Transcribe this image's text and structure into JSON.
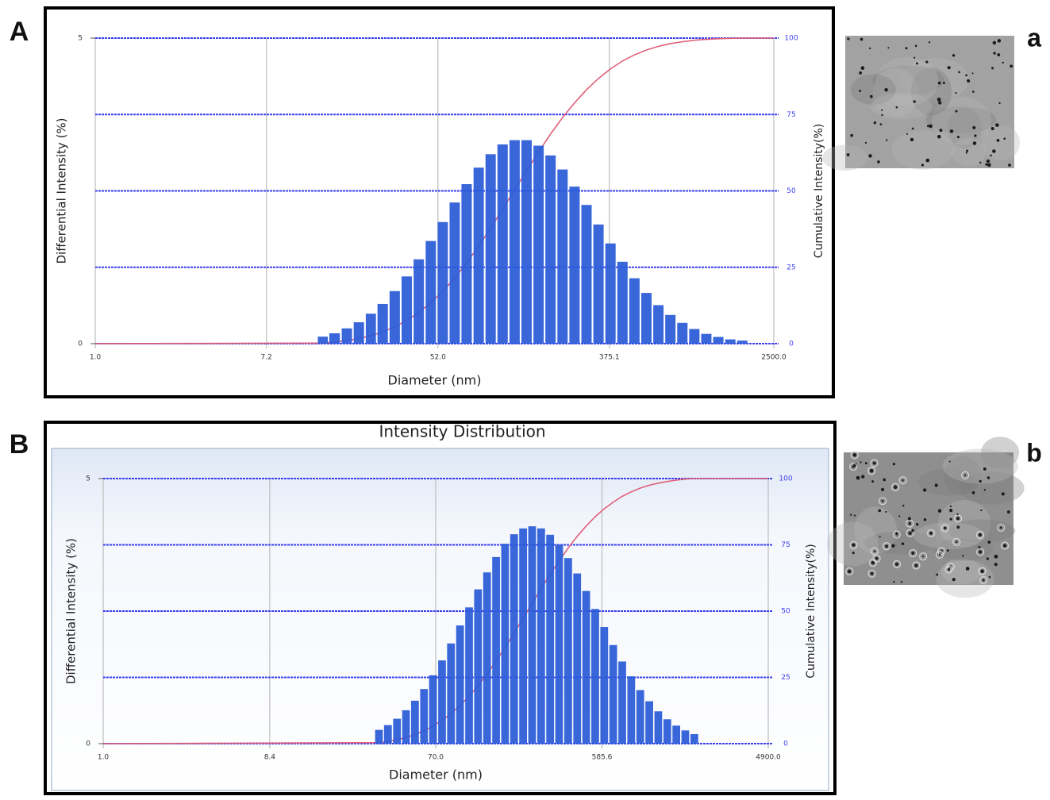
{
  "chart_data": [
    {
      "type": "bar",
      "panel_label": "A",
      "image_label": "a",
      "y_label": "Differential Intensity (%)",
      "y2_label": "Cumulative Intensity(%)",
      "x_label": "Diameter (nm)",
      "xscale": "log",
      "xlim": [
        1,
        2500
      ],
      "xticks": [
        {
          "value": 1,
          "label": "1.0"
        },
        7.2,
        {
          "value": 52,
          "label": "52.0"
        },
        375.1,
        {
          "value": 2500,
          "label": "2500.0"
        }
      ],
      "ylim": [
        0,
        5
      ],
      "yticks": [
        0,
        5
      ],
      "y2lim": [
        0,
        100
      ],
      "y2ticks": [
        0,
        25,
        50,
        75,
        100
      ],
      "grid": true,
      "series": [
        {
          "type": "bar",
          "color": "#2a5bd7",
          "x": [
            13.8,
            15.8,
            18.2,
            20.9,
            24.0,
            27.5,
            31.6,
            36.3,
            41.7,
            47.9,
            55.0,
            63.1,
            72.4,
            83.2,
            95.5,
            109.6,
            125.9,
            144.5,
            166.0,
            190.5,
            218.8,
            251.2,
            288.4,
            331.1,
            380.2,
            436.5,
            501.2,
            575.4,
            660.7,
            758.6,
            871.0,
            1000,
            1148,
            1318,
            1514,
            1738
          ],
          "values": [
            0.115,
            0.17,
            0.25,
            0.35,
            0.49,
            0.65,
            0.86,
            1.1,
            1.38,
            1.68,
            1.99,
            2.31,
            2.61,
            2.88,
            3.1,
            3.26,
            3.33,
            3.33,
            3.24,
            3.08,
            2.85,
            2.57,
            2.27,
            1.95,
            1.64,
            1.34,
            1.07,
            0.83,
            0.63,
            0.47,
            0.34,
            0.24,
            0.16,
            0.11,
            0.07,
            0.05
          ]
        },
        {
          "type": "line",
          "axis": "y2",
          "color": "#e0607a",
          "x": [
            1,
            13.8,
            15.8,
            18.2,
            20.9,
            24.0,
            27.5,
            31.6,
            36.3,
            41.7,
            47.9,
            55.0,
            63.1,
            72.4,
            83.2,
            95.5,
            109.6,
            125.9,
            144.5,
            166.0,
            190.5,
            218.8,
            251.2,
            288.4,
            331.1,
            380.2,
            436.5,
            501.2,
            575.4,
            660.7,
            758.6,
            871.0,
            1000,
            1148,
            1318,
            1514,
            1738,
            2500
          ],
          "values": [
            0,
            0.2,
            0.5,
            1.0,
            1.7,
            2.6,
            3.8,
            5.5,
            7.6,
            10.2,
            13.4,
            17.1,
            21.5,
            26.4,
            31.9,
            37.8,
            44.0,
            50.3,
            56.6,
            62.7,
            68.6,
            74.0,
            78.8,
            83.1,
            86.8,
            89.9,
            92.5,
            94.5,
            96.1,
            97.3,
            98.2,
            98.8,
            99.3,
            99.6,
            99.8,
            99.9,
            100,
            100
          ]
        }
      ]
    },
    {
      "type": "bar",
      "panel_label": "B",
      "image_label": "b",
      "title": "Intensity Distribution",
      "y_label": "Differential Intensity (%)",
      "y2_label": "Cumulative Intensity(%)",
      "x_label": "Diameter (nm)",
      "xscale": "log",
      "xlim": [
        1,
        4900
      ],
      "xticks": [
        {
          "value": 1,
          "label": "1.0"
        },
        8.4,
        {
          "value": 70,
          "label": "70.0"
        },
        585.6,
        {
          "value": 4900,
          "label": "4900.0"
        }
      ],
      "ylim": [
        0,
        5
      ],
      "yticks": [
        0,
        5
      ],
      "y2lim": [
        0,
        100
      ],
      "y2ticks": [
        0,
        25,
        50,
        75,
        100
      ],
      "grid": true,
      "series": [
        {
          "type": "bar",
          "color": "#2a5bd7",
          "x": [
            33.9,
            38.0,
            42.7,
            47.9,
            53.7,
            60.3,
            67.6,
            75.9,
            85.1,
            95.5,
            107.2,
            120.2,
            134.9,
            151.4,
            169.8,
            190.5,
            213.8,
            239.9,
            269.2,
            302.0,
            338.8,
            380.2,
            426.6,
            478.6,
            537.0,
            602.6,
            676.1,
            758.6,
            851.1,
            955.0,
            1071.5,
            1202.3,
            1349.0,
            1513.6,
            1698.2,
            1905.5
          ],
          "values": [
            0.26,
            0.35,
            0.47,
            0.63,
            0.81,
            1.03,
            1.29,
            1.57,
            1.89,
            2.23,
            2.57,
            2.91,
            3.23,
            3.52,
            3.77,
            3.95,
            4.06,
            4.1,
            4.06,
            3.94,
            3.75,
            3.5,
            3.21,
            2.88,
            2.54,
            2.2,
            1.86,
            1.55,
            1.27,
            1.01,
            0.8,
            0.61,
            0.46,
            0.34,
            0.25,
            0.18
          ]
        },
        {
          "type": "line",
          "axis": "y2",
          "color": "#e0607a",
          "x": [
            1,
            33.9,
            38.0,
            42.7,
            47.9,
            53.7,
            60.3,
            67.6,
            75.9,
            85.1,
            95.5,
            107.2,
            120.2,
            134.9,
            151.4,
            169.8,
            190.5,
            213.8,
            239.9,
            269.2,
            302.0,
            338.8,
            380.2,
            426.6,
            478.6,
            537.0,
            602.6,
            676.1,
            758.6,
            851.1,
            955.0,
            1071.5,
            1202.3,
            1349.0,
            1513.6,
            1698.2,
            1905.5,
            4900
          ],
          "values": [
            0,
            0.4,
            0.8,
            1.5,
            2.3,
            3.4,
            4.9,
            6.6,
            8.8,
            11.4,
            14.4,
            17.9,
            21.9,
            26.3,
            31.2,
            36.3,
            41.7,
            47.3,
            52.9,
            58.5,
            63.9,
            69.0,
            73.8,
            78.2,
            82.1,
            85.6,
            88.6,
            91.1,
            93.3,
            95.0,
            96.4,
            97.5,
            98.3,
            98.9,
            99.4,
            99.8,
            100,
            100
          ]
        }
      ]
    }
  ]
}
